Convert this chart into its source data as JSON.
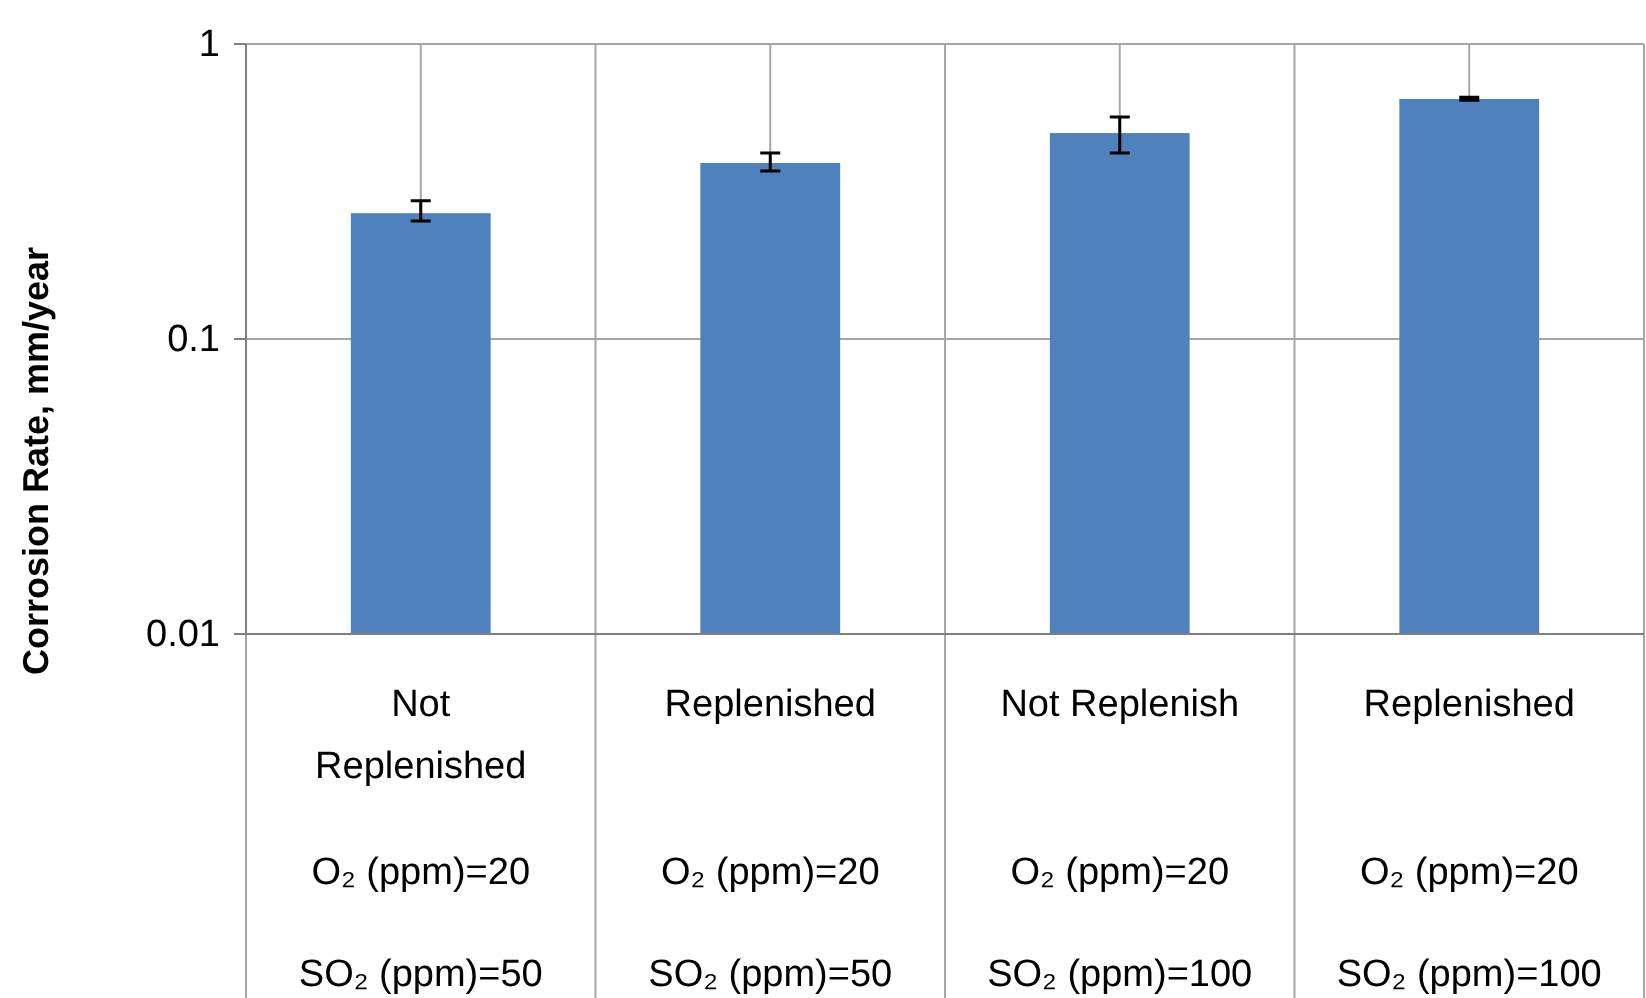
{
  "chart_data": {
    "type": "bar",
    "ylabel": "Corrosion Rate, mm/year",
    "categories": [
      "Not Replenished\nO₂ (ppm)=20\nSO₂ (ppm)=50",
      "Replenished\nO₂ (ppm)=20\nSO₂ (ppm)=50",
      "Not Replenish\nO₂ (ppm)=20\nSO₂ (ppm)=100",
      "Replenished\nO₂ (ppm)=20\nSO₂ (ppm)=100"
    ],
    "values": [
      0.267,
      0.395,
      0.499,
      0.651
    ],
    "errors": [
      [
        0.251,
        0.294
      ],
      [
        0.371,
        0.427
      ],
      [
        0.427,
        0.566
      ],
      [
        0.645,
        0.66
      ]
    ],
    "color": "#4f81bd",
    "log": true,
    "ylim": [
      0.01,
      1
    ],
    "yticks": [
      0.01,
      0.1,
      1
    ],
    "grid": true
  }
}
